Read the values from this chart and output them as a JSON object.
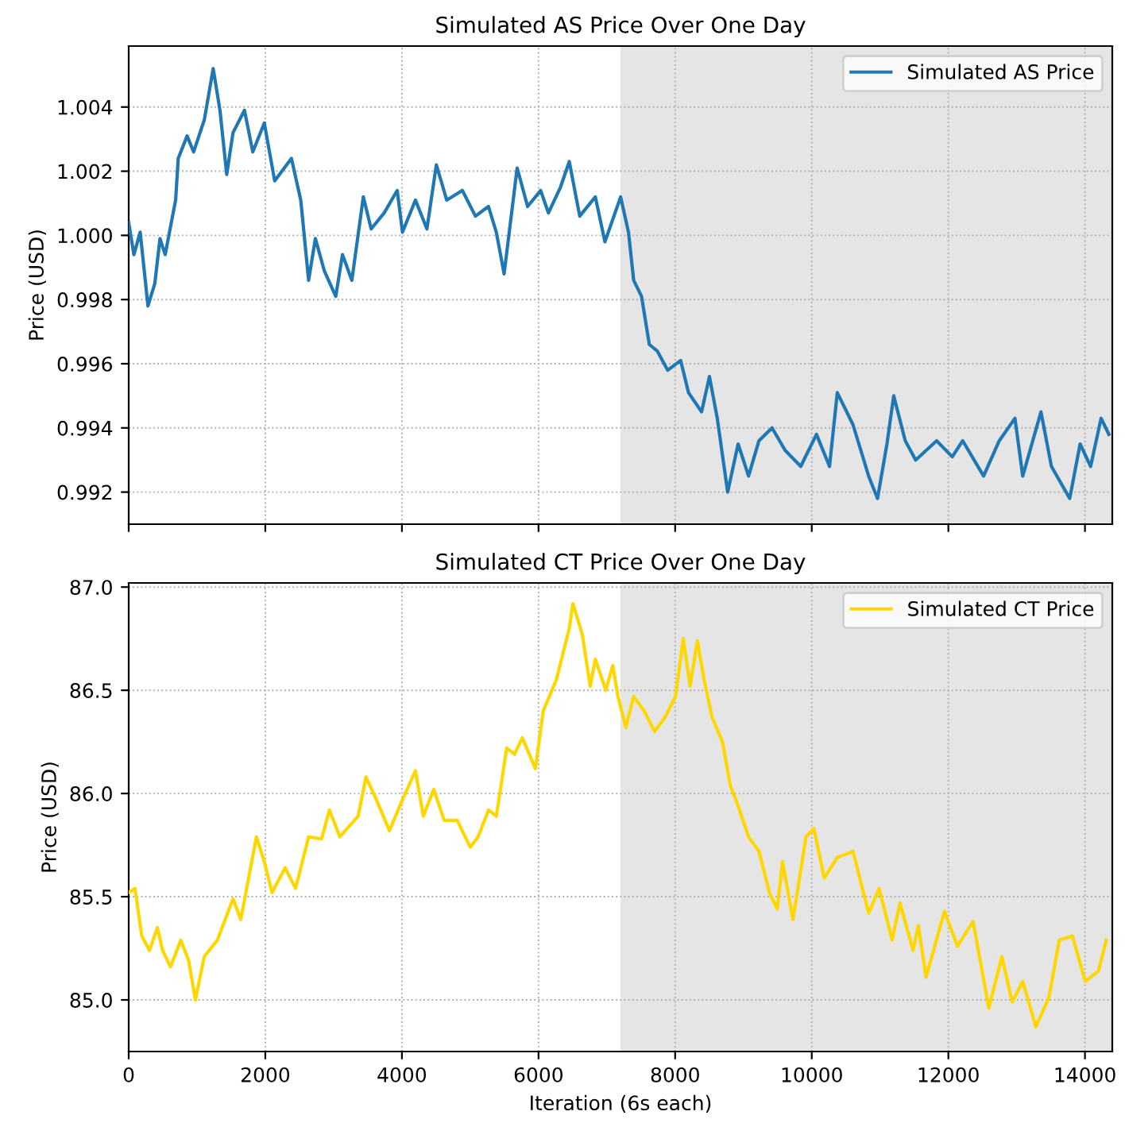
{
  "chart_data": [
    {
      "type": "line",
      "title": "Simulated AS Price Over One Day",
      "ylabel": "Price (USD)",
      "xlim": [
        0,
        14400
      ],
      "xticks": [
        0,
        2000,
        4000,
        6000,
        8000,
        10000,
        12000,
        14000
      ],
      "ylim": [
        0.991,
        1.0059
      ],
      "yticks": [
        0.992,
        0.994,
        0.996,
        0.998,
        {
          "value": 1.0,
          "label": "1.000"
        },
        1.002,
        1.004
      ],
      "tick_labels": "y",
      "grid": true,
      "legend": "top right",
      "line_style": "solid",
      "bands": [
        {
          "axis": "x",
          "from": 7200,
          "to": 14400,
          "color": "#e5e5e5"
        }
      ],
      "series": [
        {
          "name": "Simulated AS Price",
          "color": "#1f77b4",
          "x": [
            0,
            76,
            168,
            282,
            382,
            458,
            534,
            687,
            725,
            855,
            950,
            1107,
            1237,
            1336,
            1435,
            1527,
            1695,
            1817,
            1985,
            2137,
            2382,
            2519,
            2634,
            2733,
            2863,
            3031,
            3130,
            3267,
            3435,
            3550,
            3740,
            3931,
            4008,
            4198,
            4366,
            4504,
            4656,
            4885,
            5076,
            5267,
            5382,
            5496,
            5687,
            5840,
            6031,
            6145,
            6321,
            6450,
            6603,
            6832,
            6972,
            7202,
            7317,
            7393,
            7508,
            7622,
            7737,
            7890,
            8081,
            8196,
            8387,
            8502,
            8617,
            8769,
            8922,
            9075,
            9227,
            9419,
            9610,
            9839,
            10069,
            10260,
            10374,
            10604,
            10833,
            10963,
            11101,
            11200,
            11369,
            11522,
            11828,
            12057,
            12210,
            12516,
            12745,
            12975,
            13089,
            13356,
            13509,
            13777,
            13929,
            14083,
            14236,
            14350
          ],
          "values": [
            1.0004,
            0.9994,
            1.0001,
            0.9978,
            0.9985,
            0.9999,
            0.9994,
            1.0011,
            1.0024,
            1.0031,
            1.0026,
            1.0036,
            1.0052,
            1.0039,
            1.0019,
            1.0032,
            1.0039,
            1.0026,
            1.0035,
            1.0017,
            1.0024,
            1.0011,
            0.9986,
            0.9999,
            0.9989,
            0.9981,
            0.9994,
            0.9986,
            1.0012,
            1.0002,
            1.0007,
            1.0014,
            1.0001,
            1.0011,
            1.0002,
            1.0022,
            1.0011,
            1.0014,
            1.0006,
            1.0009,
            1.0001,
            0.9988,
            1.0021,
            1.0009,
            1.0014,
            1.0007,
            1.0015,
            1.0023,
            1.0006,
            1.0012,
            0.9998,
            1.0012,
            1.0001,
            0.9986,
            0.9981,
            0.9966,
            0.9964,
            0.9958,
            0.9961,
            0.9951,
            0.9945,
            0.9956,
            0.9943,
            0.992,
            0.9935,
            0.9925,
            0.9936,
            0.994,
            0.9933,
            0.9928,
            0.9938,
            0.9928,
            0.9951,
            0.9941,
            0.9925,
            0.9918,
            0.9935,
            0.995,
            0.9936,
            0.993,
            0.9936,
            0.9931,
            0.9936,
            0.9925,
            0.9936,
            0.9943,
            0.9925,
            0.9945,
            0.9928,
            0.9918,
            0.9935,
            0.9928,
            0.9943,
            0.9938
          ]
        }
      ]
    },
    {
      "type": "line",
      "title": "Simulated CT Price Over One Day",
      "xlabel": "Iteration (6s each)",
      "ylabel": "Price (USD)",
      "xlim": [
        0,
        14400
      ],
      "xticks": [
        0,
        2000,
        4000,
        6000,
        8000,
        10000,
        12000,
        14000
      ],
      "ylim": [
        84.75,
        87.02
      ],
      "yticks": [
        {
          "value": 85,
          "label": "85.0"
        },
        85.5,
        {
          "value": 86,
          "label": "86.0"
        },
        86.5,
        {
          "value": 87,
          "label": "87.0"
        }
      ],
      "grid": true,
      "legend": "top right",
      "line_style": "solid",
      "bands": [
        {
          "axis": "x",
          "from": 7200,
          "to": 14400,
          "color": "#e5e5e5"
        }
      ],
      "series": [
        {
          "name": "Simulated CT Price",
          "color": "#ffd700",
          "x": [
            0,
            92,
            191,
            305,
            420,
            496,
            611,
            763,
            878,
            977,
            1107,
            1298,
            1527,
            1641,
            1870,
            1985,
            2099,
            2290,
            2443,
            2634,
            2824,
            2939,
            3092,
            3359,
            3473,
            3626,
            3817,
            4008,
            4198,
            4313,
            4466,
            4618,
            4809,
            5000,
            5115,
            5267,
            5382,
            5534,
            5649,
            5763,
            5954,
            6069,
            6260,
            6450,
            6504,
            6641,
            6756,
            6832,
            6985,
            7087,
            7163,
            7278,
            7393,
            7546,
            7699,
            7852,
            8005,
            8119,
            8219,
            8326,
            8425,
            8540,
            8693,
            8807,
            8922,
            9075,
            9227,
            9380,
            9495,
            9572,
            9725,
            9916,
            10031,
            10183,
            10374,
            10604,
            10833,
            10986,
            11177,
            11292,
            11483,
            11560,
            11674,
            11943,
            12133,
            12362,
            12592,
            12783,
            12936,
            13089,
            13280,
            13471,
            13624,
            13815,
            14006,
            14197,
            14312
          ],
          "values": [
            85.52,
            85.54,
            85.31,
            85.24,
            85.35,
            85.24,
            85.16,
            85.29,
            85.19,
            85.0,
            85.21,
            85.29,
            85.49,
            85.39,
            85.79,
            85.67,
            85.52,
            85.64,
            85.54,
            85.79,
            85.78,
            85.92,
            85.79,
            85.89,
            86.08,
            85.97,
            85.82,
            85.97,
            86.11,
            85.89,
            86.02,
            85.87,
            85.87,
            85.74,
            85.79,
            85.92,
            85.89,
            86.22,
            86.19,
            86.27,
            86.12,
            86.4,
            86.55,
            86.8,
            86.92,
            86.77,
            86.52,
            86.65,
            86.5,
            86.62,
            86.47,
            86.32,
            86.47,
            86.4,
            86.3,
            86.37,
            86.47,
            86.75,
            86.52,
            86.74,
            86.55,
            86.37,
            86.25,
            86.04,
            85.94,
            85.79,
            85.72,
            85.52,
            85.44,
            85.67,
            85.39,
            85.79,
            85.83,
            85.59,
            85.69,
            85.72,
            85.42,
            85.54,
            85.29,
            85.47,
            85.24,
            85.36,
            85.11,
            85.43,
            85.26,
            85.38,
            84.96,
            85.21,
            84.99,
            85.09,
            84.87,
            85.01,
            85.29,
            85.31,
            85.09,
            85.14,
            85.29
          ]
        }
      ]
    }
  ]
}
